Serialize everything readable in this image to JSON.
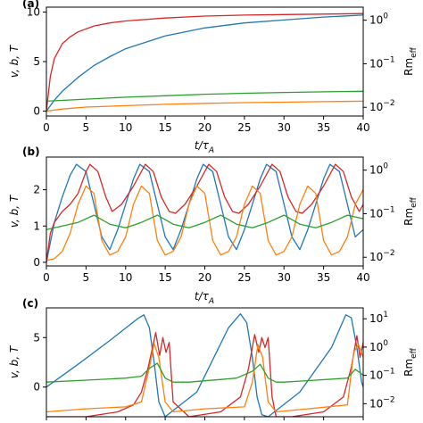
{
  "chart_data": [
    {
      "type": "line",
      "panel_label": "(a)",
      "ylabel": "v, b, T",
      "ylabel_right": "Rm",
      "ylabel_right_sub": "eff",
      "xlabel": "t/τ",
      "xlabel_sub": "A",
      "xlim": [
        0,
        40
      ],
      "ylim": [
        -0.5,
        10.5
      ],
      "yticks": [
        0,
        5,
        10
      ],
      "xticks": [
        0,
        5,
        10,
        15,
        20,
        25,
        30,
        35,
        40
      ],
      "right_log_ticks": [
        "10^0",
        "10^-1",
        "10^-2"
      ],
      "colors": [
        "#d62728",
        "#1f77b4",
        "#2ca02c",
        "#ff7f0e"
      ],
      "series": [
        {
          "color": "#d62728",
          "x": [
            0,
            0.5,
            1,
            2,
            3,
            4,
            6,
            8,
            10,
            15,
            20,
            25,
            30,
            35,
            40
          ],
          "y": [
            0,
            3.5,
            5.3,
            6.8,
            7.5,
            8.0,
            8.6,
            8.9,
            9.1,
            9.4,
            9.6,
            9.7,
            9.75,
            9.8,
            9.85
          ]
        },
        {
          "color": "#1f77b4",
          "x": [
            0,
            1,
            2,
            4,
            6,
            8,
            10,
            15,
            20,
            25,
            30,
            35,
            40
          ],
          "y": [
            0,
            1.1,
            2.0,
            3.4,
            4.6,
            5.5,
            6.3,
            7.6,
            8.4,
            8.9,
            9.2,
            9.5,
            9.7
          ]
        },
        {
          "color": "#2ca02c",
          "x": [
            0,
            5,
            10,
            15,
            20,
            25,
            30,
            35,
            40
          ],
          "y": [
            1.0,
            1.2,
            1.4,
            1.55,
            1.7,
            1.8,
            1.88,
            1.94,
            2.0
          ]
        },
        {
          "color": "#ff7f0e",
          "x": [
            0,
            2,
            5,
            10,
            15,
            20,
            25,
            30,
            35,
            40
          ],
          "y": [
            0,
            0.2,
            0.4,
            0.55,
            0.68,
            0.78,
            0.85,
            0.9,
            0.95,
            1.0
          ]
        }
      ]
    },
    {
      "type": "line",
      "panel_label": "(b)",
      "ylabel": "v, b, T",
      "ylabel_right": "Rm",
      "ylabel_right_sub": "eff",
      "xlabel": "t/τ",
      "xlabel_sub": "A",
      "xlim": [
        0,
        40
      ],
      "ylim": [
        -0.1,
        2.9
      ],
      "yticks": [
        0,
        1,
        2
      ],
      "xticks": [
        0,
        5,
        10,
        15,
        20,
        25,
        30,
        35,
        40
      ],
      "right_log_ticks": [
        "10^0",
        "10^-1",
        "10^-2"
      ],
      "colors": [
        "#1f77b4",
        "#d62728",
        "#ff7f0e",
        "#2ca02c"
      ],
      "series": [
        {
          "color": "#1f77b4",
          "x": [
            0,
            1,
            2,
            3,
            3.8,
            5,
            6,
            7,
            8,
            9,
            10,
            11,
            11.8,
            13,
            14,
            15,
            16,
            17,
            18,
            19,
            19.8,
            21,
            22,
            23,
            24,
            25,
            26,
            27,
            27.8,
            29,
            30,
            31,
            32,
            33,
            34,
            35,
            35.8,
            37,
            38,
            39,
            40
          ],
          "y": [
            0,
            1.1,
            1.8,
            2.4,
            2.7,
            2.5,
            1.6,
            0.7,
            0.35,
            0.9,
            1.6,
            2.3,
            2.7,
            2.5,
            1.6,
            0.7,
            0.35,
            0.9,
            1.6,
            2.3,
            2.7,
            2.5,
            1.6,
            0.7,
            0.35,
            0.9,
            1.6,
            2.3,
            2.7,
            2.5,
            1.6,
            0.7,
            0.35,
            0.9,
            1.6,
            2.3,
            2.7,
            2.5,
            1.6,
            0.7,
            0.9
          ]
        },
        {
          "color": "#d62728",
          "x": [
            0,
            0.5,
            1,
            2,
            3,
            4,
            5,
            5.5,
            6.5,
            7.5,
            8.3,
            9.5,
            11,
            12.5,
            13.5,
            14.5,
            15.5,
            16.3,
            17.5,
            19,
            20.5,
            21.5,
            22.5,
            23.5,
            24.3,
            25.5,
            27,
            28.5,
            29.5,
            30.5,
            31.5,
            32.3,
            33.5,
            35,
            36.5,
            37.5,
            38.5,
            39.5,
            40
          ],
          "y": [
            0,
            0.8,
            1.1,
            1.4,
            1.6,
            1.9,
            2.5,
            2.7,
            2.5,
            1.8,
            1.4,
            1.6,
            2.1,
            2.7,
            2.5,
            1.8,
            1.4,
            1.35,
            1.6,
            2.1,
            2.7,
            2.5,
            1.8,
            1.4,
            1.35,
            1.6,
            2.1,
            2.7,
            2.5,
            1.8,
            1.4,
            1.35,
            1.6,
            2.1,
            2.7,
            2.5,
            1.8,
            1.4,
            1.6
          ]
        },
        {
          "color": "#ff7f0e",
          "x": [
            0,
            1,
            2,
            3,
            4,
            5,
            6,
            7,
            8,
            9,
            10,
            11,
            12,
            13,
            14,
            15,
            16,
            17,
            18,
            19,
            20,
            21,
            22,
            23,
            24,
            25,
            26,
            27,
            28,
            29,
            30,
            31,
            32,
            33,
            34,
            35,
            36,
            37,
            38,
            39,
            40
          ],
          "y": [
            0.05,
            0.1,
            0.3,
            0.8,
            1.6,
            2.1,
            1.9,
            0.6,
            0.2,
            0.3,
            0.7,
            1.6,
            2.1,
            1.9,
            0.6,
            0.2,
            0.3,
            0.7,
            1.6,
            2.1,
            1.9,
            0.6,
            0.2,
            0.3,
            0.7,
            1.6,
            2.1,
            1.9,
            0.6,
            0.2,
            0.3,
            0.7,
            1.6,
            2.1,
            1.9,
            0.6,
            0.2,
            0.3,
            0.7,
            1.6,
            2.0
          ]
        },
        {
          "color": "#2ca02c",
          "x": [
            0,
            2,
            4,
            6,
            8,
            10,
            12,
            14,
            16,
            18,
            20,
            22,
            24,
            26,
            28,
            30,
            32,
            34,
            36,
            38,
            40
          ],
          "y": [
            0.9,
            1.0,
            1.1,
            1.3,
            1.05,
            0.95,
            1.1,
            1.3,
            1.05,
            0.95,
            1.1,
            1.3,
            1.05,
            0.95,
            1.1,
            1.3,
            1.05,
            0.95,
            1.1,
            1.3,
            1.2
          ]
        }
      ]
    },
    {
      "type": "line",
      "panel_label": "(c)",
      "ylabel": "v, b, T",
      "ylabel_right": "Rm",
      "ylabel_right_sub": "eff",
      "xlim": [
        0,
        40
      ],
      "ylim": [
        -3,
        8
      ],
      "yticks": [
        0,
        5
      ],
      "right_log_ticks": [
        "10^1",
        "10^0",
        "10^-1",
        "10^-2"
      ],
      "colors": [
        "#1f77b4",
        "#d62728",
        "#ff7f0e",
        "#2ca02c"
      ],
      "series": [
        {
          "color": "#1f77b4",
          "x": [
            0,
            4,
            8,
            11.5,
            12.3,
            13.0,
            13.6,
            14.2,
            15,
            19,
            23,
            24.5,
            25.3,
            26.0,
            26.6,
            27.2,
            28,
            32,
            36,
            37.8,
            38.5,
            39.2,
            39.8,
            40
          ],
          "y": [
            0,
            2.3,
            4.7,
            6.9,
            7.3,
            6.0,
            2.5,
            -1.5,
            -3,
            -0.5,
            6.0,
            7.4,
            6.5,
            3.0,
            -1.0,
            -2.8,
            -3,
            -0.5,
            4.0,
            7.3,
            7.0,
            4.0,
            0.5,
            0
          ]
        },
        {
          "color": "#d62728",
          "x": [
            0,
            5,
            9,
            11,
            12,
            12.8,
            13.4,
            13.8,
            14.3,
            14.7,
            15.1,
            15.5,
            16,
            18,
            22,
            24.5,
            25.5,
            26.3,
            26.8,
            27.2,
            27.6,
            28,
            28.5,
            29,
            31,
            35,
            37.5,
            38.5,
            39.2,
            39.6,
            40
          ],
          "y": [
            -3,
            -3,
            -2.5,
            -1.8,
            -0.5,
            1.8,
            4.0,
            5.5,
            3.2,
            5.0,
            3.5,
            4.5,
            -1.5,
            -3,
            -2.5,
            -1.0,
            1.8,
            5.3,
            3.5,
            5.0,
            4.0,
            5.0,
            -1.0,
            -3,
            -3,
            -2.5,
            -1.0,
            2.0,
            5.2,
            3.0,
            4.5
          ]
        },
        {
          "color": "#ff7f0e",
          "x": [
            0,
            5,
            10,
            12,
            13,
            13.6,
            14.2,
            15,
            16,
            20,
            25,
            26,
            26.7,
            27.3,
            28,
            29,
            33,
            38,
            38.8,
            39.4,
            40
          ],
          "y": [
            -2.5,
            -2.2,
            -2.0,
            -1.5,
            2.0,
            4.4,
            3.0,
            -1.5,
            -2.5,
            -2.2,
            -2.0,
            0.5,
            4.3,
            3.0,
            -1.5,
            -2.5,
            -2.2,
            -1.8,
            3.5,
            4.3,
            3.0
          ]
        },
        {
          "color": "#2ca02c",
          "x": [
            0,
            5,
            10,
            12,
            13,
            14,
            15,
            16,
            18,
            24,
            26,
            27,
            28,
            29,
            30,
            32,
            38,
            39,
            40
          ],
          "y": [
            0.5,
            0.7,
            0.9,
            1.1,
            1.9,
            2.4,
            0.9,
            0.5,
            0.5,
            0.9,
            1.6,
            2.3,
            0.9,
            0.5,
            0.5,
            0.6,
            0.9,
            1.8,
            1.2
          ]
        }
      ]
    }
  ]
}
